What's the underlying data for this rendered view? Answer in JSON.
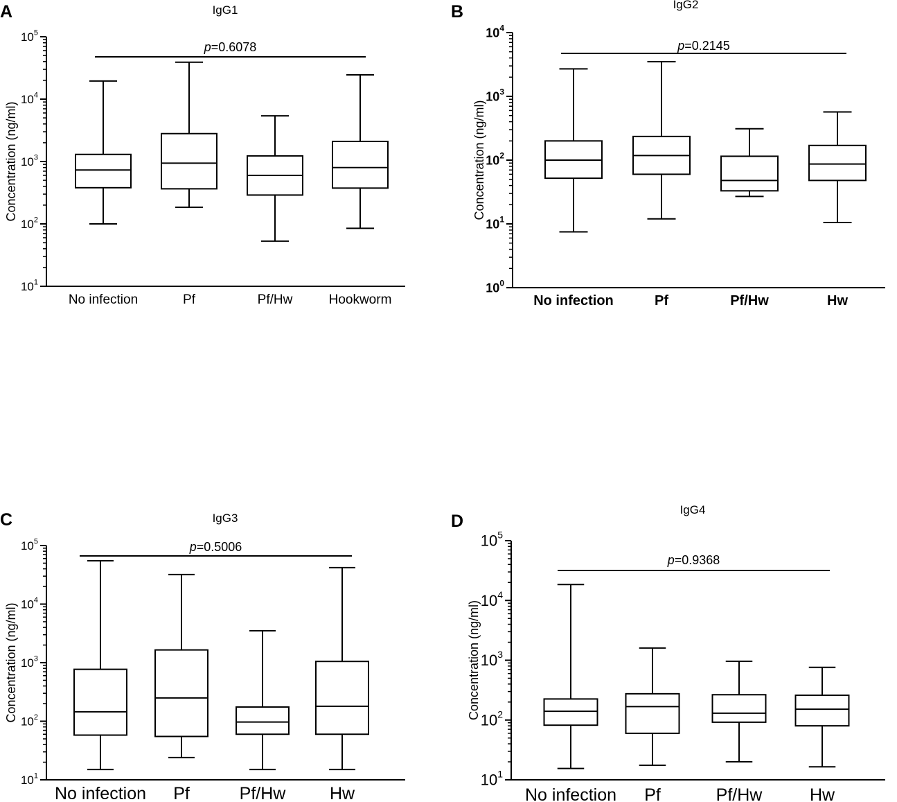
{
  "figure": {
    "colors": {
      "stroke": "#000000",
      "background": "#ffffff"
    }
  },
  "chart_data": [
    {
      "panel": "A",
      "type": "boxplot",
      "title": "IgG1",
      "xlabel": "",
      "ylabel": "Concentration (ng/ml)",
      "yscale": "log",
      "ylim_exponents": [
        1,
        5
      ],
      "y_ticks": [
        {
          "base": "10",
          "exp": "1"
        },
        {
          "base": "10",
          "exp": "2"
        },
        {
          "base": "10",
          "exp": "3"
        },
        {
          "base": "10",
          "exp": "4"
        },
        {
          "base": "10",
          "exp": "5"
        }
      ],
      "p_value": {
        "label": "p",
        "value": "=0.6078"
      },
      "categories": [
        "No infection",
        "Pf",
        "Pf/Hw",
        "Hookworm"
      ],
      "boxes": [
        {
          "min": 100,
          "q1": 380,
          "median": 730,
          "q3": 1300,
          "max": 19500
        },
        {
          "min": 185,
          "q1": 365,
          "median": 940,
          "q3": 2800,
          "max": 39000
        },
        {
          "min": 53,
          "q1": 290,
          "median": 600,
          "q3": 1230,
          "max": 5400
        },
        {
          "min": 85,
          "q1": 375,
          "median": 800,
          "q3": 2100,
          "max": 24500
        }
      ]
    },
    {
      "panel": "B",
      "type": "boxplot",
      "title": "IgG2",
      "xlabel": "",
      "ylabel": "Concentration (ng/ml)",
      "yscale": "log",
      "ylim_exponents": [
        0,
        4
      ],
      "y_ticks": [
        {
          "base": "10",
          "exp": "0"
        },
        {
          "base": "10",
          "exp": "1"
        },
        {
          "base": "10",
          "exp": "2"
        },
        {
          "base": "10",
          "exp": "3"
        },
        {
          "base": "10",
          "exp": "4"
        }
      ],
      "p_value": {
        "label": "p",
        "value": "=0.2145"
      },
      "categories": [
        "No infection",
        "Pf",
        "Pf/Hw",
        "Hw"
      ],
      "boxes": [
        {
          "min": 7.5,
          "q1": 52,
          "median": 100,
          "q3": 200,
          "max": 2700
        },
        {
          "min": 12,
          "q1": 60,
          "median": 118,
          "q3": 235,
          "max": 3500
        },
        {
          "min": 27,
          "q1": 33,
          "median": 48,
          "q3": 115,
          "max": 310
        },
        {
          "min": 10.5,
          "q1": 48,
          "median": 87,
          "q3": 170,
          "max": 570
        }
      ]
    },
    {
      "panel": "C",
      "type": "boxplot",
      "title": "IgG3",
      "xlabel": "",
      "ylabel": "Concentration (ng/ml)",
      "yscale": "log",
      "ylim_exponents": [
        1,
        5
      ],
      "y_ticks": [
        {
          "base": "10",
          "exp": "1"
        },
        {
          "base": "10",
          "exp": "2"
        },
        {
          "base": "10",
          "exp": "3"
        },
        {
          "base": "10",
          "exp": "4"
        },
        {
          "base": "10",
          "exp": "5"
        }
      ],
      "p_value": {
        "label": "p",
        "value": "=0.5006"
      },
      "categories": [
        "No infection",
        "Pf",
        "Pf/Hw",
        "Hw"
      ],
      "boxes": [
        {
          "min": 15,
          "q1": 58,
          "median": 145,
          "q3": 770,
          "max": 55000
        },
        {
          "min": 24,
          "q1": 55,
          "median": 250,
          "q3": 1650,
          "max": 32000
        },
        {
          "min": 15,
          "q1": 60,
          "median": 97,
          "q3": 175,
          "max": 3500
        },
        {
          "min": 15,
          "q1": 60,
          "median": 180,
          "q3": 1050,
          "max": 42000
        }
      ]
    },
    {
      "panel": "D",
      "type": "boxplot",
      "title": "IgG4",
      "xlabel": "",
      "ylabel": "Concentration (ng/ml)",
      "yscale": "log",
      "ylim_exponents": [
        1,
        5
      ],
      "y_ticks": [
        {
          "base": "10",
          "exp": "1"
        },
        {
          "base": "10",
          "exp": "2"
        },
        {
          "base": "10",
          "exp": "3"
        },
        {
          "base": "10",
          "exp": "4"
        },
        {
          "base": "10",
          "exp": "5"
        }
      ],
      "p_value": {
        "label": "p",
        "value": "=0.9368"
      },
      "categories": [
        "No infection",
        "Pf",
        "Pf/Hw",
        "Hw"
      ],
      "boxes": [
        {
          "min": 15.5,
          "q1": 82,
          "median": 140,
          "q3": 225,
          "max": 18500
        },
        {
          "min": 17.5,
          "q1": 60,
          "median": 168,
          "q3": 275,
          "max": 1600
        },
        {
          "min": 20,
          "q1": 92,
          "median": 130,
          "q3": 265,
          "max": 960
        },
        {
          "min": 16.5,
          "q1": 80,
          "median": 152,
          "q3": 260,
          "max": 760
        }
      ]
    }
  ]
}
